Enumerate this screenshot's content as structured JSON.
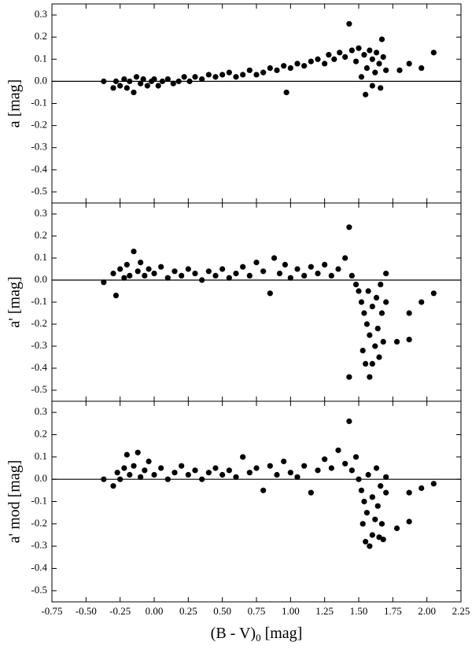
{
  "chart_data": [
    {
      "type": "scatter",
      "y_label": "a [mag]",
      "color": "#000000",
      "zero_line": true,
      "xlim": [
        -0.75,
        2.25
      ],
      "ylim": [
        -0.55,
        0.35
      ],
      "yticks": [
        0.3,
        0.2,
        0.1,
        {
          "value": 0,
          "label": "0.0"
        },
        -0.1,
        -0.2,
        -0.3,
        -0.4,
        -0.5
      ],
      "x": [
        -0.37,
        -0.3,
        -0.28,
        -0.25,
        -0.22,
        -0.2,
        -0.18,
        -0.15,
        -0.13,
        -0.1,
        -0.08,
        -0.05,
        -0.02,
        0.0,
        0.03,
        0.06,
        0.1,
        0.14,
        0.18,
        0.22,
        0.26,
        0.3,
        0.35,
        0.4,
        0.45,
        0.5,
        0.55,
        0.6,
        0.65,
        0.7,
        0.75,
        0.8,
        0.85,
        0.9,
        0.95,
        0.97,
        1.0,
        1.05,
        1.1,
        1.15,
        1.2,
        1.25,
        1.28,
        1.32,
        1.36,
        1.4,
        1.43,
        1.45,
        1.48,
        1.5,
        1.52,
        1.54,
        1.55,
        1.56,
        1.58,
        1.6,
        1.6,
        1.62,
        1.63,
        1.65,
        1.67,
        1.66,
        1.68,
        1.7,
        1.8,
        1.87,
        1.96,
        2.05
      ],
      "values": [
        0.0,
        -0.03,
        0.0,
        -0.02,
        0.01,
        -0.03,
        0.0,
        -0.05,
        0.02,
        -0.01,
        0.01,
        -0.02,
        0.0,
        0.01,
        -0.02,
        0.0,
        0.01,
        -0.01,
        0.0,
        0.02,
        0.0,
        0.02,
        0.01,
        0.03,
        0.02,
        0.03,
        0.04,
        0.02,
        0.03,
        0.05,
        0.03,
        0.04,
        0.06,
        0.05,
        0.07,
        -0.05,
        0.06,
        0.08,
        0.07,
        0.09,
        0.1,
        0.08,
        0.12,
        0.1,
        0.13,
        0.11,
        0.26,
        0.14,
        0.09,
        0.15,
        0.02,
        0.12,
        -0.06,
        0.06,
        0.14,
        0.1,
        -0.02,
        0.04,
        0.13,
        0.08,
        0.19,
        -0.03,
        0.11,
        0.05,
        0.05,
        0.08,
        0.06,
        0.13
      ]
    },
    {
      "type": "scatter",
      "y_label": "a' [mag]",
      "color": "#000000",
      "zero_line": true,
      "xlim": [
        -0.75,
        2.25
      ],
      "ylim": [
        -0.55,
        0.35
      ],
      "yticks": [
        0.3,
        0.2,
        0.1,
        {
          "value": 0,
          "label": "0.0"
        },
        -0.1,
        -0.2,
        -0.3,
        -0.4,
        -0.5
      ],
      "x": [
        -0.37,
        -0.3,
        -0.28,
        -0.25,
        -0.22,
        -0.2,
        -0.18,
        -0.15,
        -0.12,
        -0.1,
        -0.07,
        -0.04,
        0.0,
        0.05,
        0.1,
        0.15,
        0.2,
        0.25,
        0.3,
        0.35,
        0.4,
        0.45,
        0.5,
        0.55,
        0.6,
        0.65,
        0.7,
        0.75,
        0.8,
        0.85,
        0.88,
        0.92,
        0.96,
        1.0,
        1.05,
        1.1,
        1.15,
        1.2,
        1.25,
        1.3,
        1.35,
        1.4,
        1.43,
        1.43,
        1.45,
        1.48,
        1.5,
        1.52,
        1.53,
        1.54,
        1.55,
        1.56,
        1.57,
        1.58,
        1.58,
        1.6,
        1.6,
        1.62,
        1.63,
        1.64,
        1.65,
        1.66,
        1.67,
        1.68,
        1.7,
        1.7,
        1.78,
        1.87,
        1.87,
        1.96,
        2.05
      ],
      "values": [
        -0.01,
        0.03,
        -0.07,
        0.05,
        0.01,
        0.07,
        0.02,
        0.13,
        0.04,
        0.08,
        0.02,
        0.05,
        0.03,
        0.06,
        0.01,
        0.04,
        0.02,
        0.05,
        0.03,
        0.0,
        0.04,
        0.02,
        0.05,
        0.01,
        0.03,
        0.06,
        0.02,
        0.08,
        0.04,
        -0.06,
        0.1,
        0.03,
        0.07,
        0.01,
        0.05,
        0.02,
        0.06,
        0.03,
        0.07,
        0.02,
        0.05,
        0.1,
        0.24,
        -0.44,
        0.02,
        -0.02,
        -0.05,
        -0.1,
        -0.32,
        -0.15,
        -0.38,
        -0.2,
        -0.05,
        -0.44,
        -0.25,
        -0.12,
        -0.38,
        -0.3,
        -0.08,
        -0.22,
        -0.35,
        -0.02,
        -0.15,
        -0.28,
        -0.1,
        0.03,
        -0.28,
        -0.27,
        -0.15,
        -0.1,
        -0.06
      ]
    },
    {
      "type": "scatter",
      "y_label": "a' mod [mag]",
      "color": "#000000",
      "zero_line": true,
      "x_label": "(B - V)",
      "x_label_subscript": "0",
      "x_label_unit": "[mag]",
      "xlim": [
        -0.75,
        2.25
      ],
      "ylim": [
        -0.55,
        0.35
      ],
      "xticks": [
        -0.75,
        {
          "value": -0.5,
          "label": "-0.50"
        },
        -0.25,
        {
          "value": 0,
          "label": "0.00"
        },
        0.25,
        {
          "value": 0.5,
          "label": "0.50"
        },
        0.75,
        {
          "value": 1,
          "label": "1.00"
        },
        1.25,
        {
          "value": 1.5,
          "label": "1.50"
        },
        1.75,
        {
          "value": 2,
          "label": "2.00"
        },
        2.25
      ],
      "yticks": [
        0.3,
        0.2,
        0.1,
        {
          "value": 0,
          "label": "0.0"
        },
        -0.1,
        -0.2,
        -0.3,
        -0.4,
        -0.5
      ],
      "x": [
        -0.37,
        -0.3,
        -0.27,
        -0.25,
        -0.22,
        -0.2,
        -0.18,
        -0.15,
        -0.12,
        -0.1,
        -0.07,
        -0.04,
        0.0,
        0.05,
        0.1,
        0.15,
        0.2,
        0.25,
        0.3,
        0.35,
        0.4,
        0.45,
        0.5,
        0.55,
        0.6,
        0.65,
        0.7,
        0.75,
        0.8,
        0.85,
        0.9,
        0.95,
        1.0,
        1.05,
        1.1,
        1.15,
        1.2,
        1.25,
        1.3,
        1.35,
        1.4,
        1.43,
        1.45,
        1.48,
        1.5,
        1.52,
        1.53,
        1.54,
        1.55,
        1.56,
        1.57,
        1.58,
        1.6,
        1.6,
        1.62,
        1.63,
        1.64,
        1.65,
        1.66,
        1.67,
        1.68,
        1.7,
        1.7,
        1.78,
        1.87,
        1.87,
        1.96,
        2.05
      ],
      "values": [
        0.0,
        -0.03,
        0.03,
        0.0,
        0.05,
        0.11,
        0.02,
        0.06,
        0.12,
        0.01,
        0.04,
        0.08,
        0.02,
        0.05,
        0.0,
        0.03,
        0.06,
        0.02,
        0.04,
        0.0,
        0.03,
        0.05,
        0.02,
        0.04,
        0.01,
        0.1,
        0.03,
        0.05,
        -0.05,
        0.06,
        0.02,
        0.08,
        0.03,
        0.01,
        0.06,
        -0.06,
        0.04,
        0.09,
        0.05,
        0.13,
        0.07,
        0.26,
        0.04,
        0.1,
        0.0,
        -0.05,
        -0.2,
        -0.1,
        -0.28,
        -0.15,
        0.02,
        -0.3,
        -0.08,
        -0.25,
        -0.18,
        0.05,
        -0.12,
        -0.26,
        -0.03,
        -0.2,
        -0.27,
        -0.06,
        0.01,
        -0.22,
        -0.06,
        -0.19,
        -0.04,
        -0.02
      ]
    }
  ]
}
